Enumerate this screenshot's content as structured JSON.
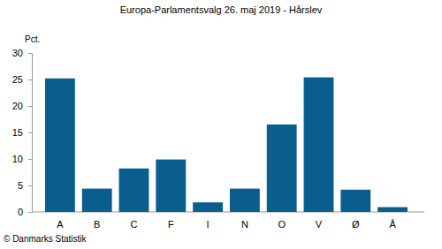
{
  "chart_data": {
    "type": "bar",
    "title": "Europa-Parlamentsvalg 26. maj 2019 - Hårslev",
    "ylabel": "Pct.",
    "annotations": [
      "© Danmarks Statistik"
    ],
    "categories": [
      "A",
      "B",
      "C",
      "F",
      "I",
      "N",
      "O",
      "V",
      "Ø",
      "Å"
    ],
    "values": [
      25.2,
      4.4,
      8.2,
      9.9,
      1.8,
      4.4,
      16.5,
      25.4,
      4.2,
      0.9
    ],
    "color": "#0a5e8e",
    "ylim": [
      0,
      30
    ],
    "yticks": [
      0,
      5,
      10,
      15,
      20,
      25,
      30
    ],
    "grid": false
  }
}
